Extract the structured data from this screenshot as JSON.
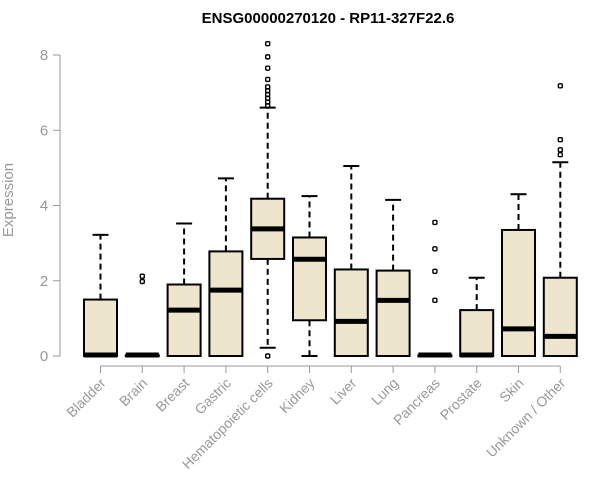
{
  "chart_data": {
    "type": "boxplot",
    "title": "ENSG00000270120 - RP11-327F22.6",
    "xlabel": "",
    "ylabel": "Expression",
    "ylim": [
      0,
      8.3
    ],
    "yticks": [
      0,
      2,
      4,
      6,
      8
    ],
    "box_color": "#ede6cc",
    "categories": [
      "Bladder",
      "Brain",
      "Breast",
      "Gastric",
      "Hematopoietic cells",
      "Kidney",
      "Liver",
      "Lung",
      "Pancreas",
      "Prostate",
      "Skin",
      "Unknown / Other"
    ],
    "boxes": [
      {
        "q1": 0.0,
        "median": 0.02,
        "q3": 1.5,
        "whisker_low": 0.0,
        "whisker_high": 3.22,
        "outliers": []
      },
      {
        "q1": 0.0,
        "median": 0.0,
        "q3": 0.02,
        "whisker_low": 0.0,
        "whisker_high": 0.02,
        "outliers": [
          1.98,
          2.12
        ]
      },
      {
        "q1": 0.0,
        "median": 1.22,
        "q3": 1.9,
        "whisker_low": 0.0,
        "whisker_high": 3.52,
        "outliers": []
      },
      {
        "q1": 0.0,
        "median": 1.75,
        "q3": 2.78,
        "whisker_low": 0.0,
        "whisker_high": 4.72,
        "outliers": []
      },
      {
        "q1": 2.58,
        "median": 3.38,
        "q3": 4.18,
        "whisker_low": 0.22,
        "whisker_high": 6.6,
        "outliers": [
          0.0,
          6.65,
          6.75,
          6.85,
          6.95,
          7.05,
          7.15,
          7.35,
          7.65,
          7.95,
          8.3
        ]
      },
      {
        "q1": 0.95,
        "median": 2.57,
        "q3": 3.15,
        "whisker_low": 0.0,
        "whisker_high": 4.25,
        "outliers": []
      },
      {
        "q1": 0.0,
        "median": 0.92,
        "q3": 2.3,
        "whisker_low": 0.0,
        "whisker_high": 5.05,
        "outliers": []
      },
      {
        "q1": 0.0,
        "median": 1.48,
        "q3": 2.27,
        "whisker_low": 0.0,
        "whisker_high": 4.15,
        "outliers": []
      },
      {
        "q1": 0.0,
        "median": 0.0,
        "q3": 0.02,
        "whisker_low": 0.0,
        "whisker_high": 0.02,
        "outliers": [
          1.48,
          2.25,
          2.85,
          3.55
        ]
      },
      {
        "q1": 0.0,
        "median": 0.0,
        "q3": 1.22,
        "whisker_low": 0.0,
        "whisker_high": 2.08,
        "outliers": []
      },
      {
        "q1": 0.0,
        "median": 0.72,
        "q3": 3.35,
        "whisker_low": 0.0,
        "whisker_high": 4.3,
        "outliers": []
      },
      {
        "q1": 0.0,
        "median": 0.52,
        "q3": 2.08,
        "whisker_low": 0.0,
        "whisker_high": 5.15,
        "outliers": [
          5.35,
          5.48,
          5.75,
          7.18
        ]
      }
    ]
  }
}
